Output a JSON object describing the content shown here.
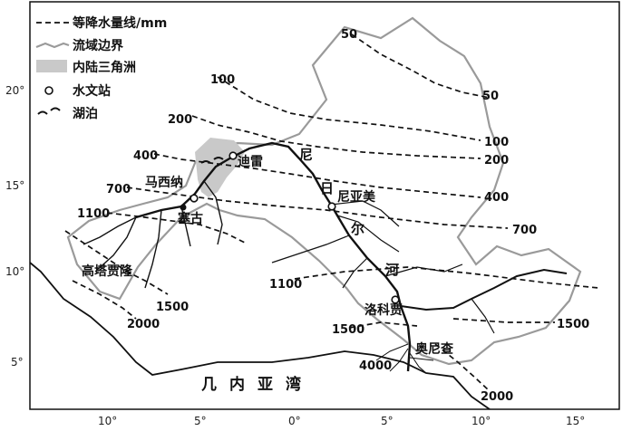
{
  "legend": {
    "isohyet": "等降水量线/mm",
    "basin_boundary": "流域边界",
    "inland_delta": "内陆三角洲",
    "station": "水文站",
    "lake": "湖泊"
  },
  "colors": {
    "delta_fill": "#c9c9c9",
    "boundary": "#9a9a9a",
    "river": "#111111",
    "isohyet": "#111111"
  },
  "latitudes": [
    "20°",
    "15°",
    "10°",
    "5°"
  ],
  "longitudes": [
    "10°",
    "5°",
    "0°",
    "5°",
    "10°",
    "15°"
  ],
  "isohyets": {
    "l50a": "50",
    "l50b": "50",
    "l100a": "100",
    "l100b": "100",
    "l200a": "200",
    "l200b": "200",
    "l400a": "400",
    "l400b": "400",
    "l700a": "700",
    "l700b": "700",
    "l1100a": "1100",
    "l1100b": "1100",
    "l1500a": "1500",
    "l1500b": "1500",
    "l1500c": "1500",
    "l2000a": "2000",
    "l2000b": "2000",
    "l4000": "4000"
  },
  "places": {
    "timbuktu": "迪雷",
    "macina": "马西纳",
    "segou": "塞古",
    "niamey": "尼亚美",
    "guinea_highlands": "高塔贾隆",
    "lokoja": "洛科贾",
    "onitsha": "奥尼查"
  },
  "river_name": [
    "尼",
    "日",
    "尔",
    "河"
  ],
  "sea_label": "几内亚湾"
}
